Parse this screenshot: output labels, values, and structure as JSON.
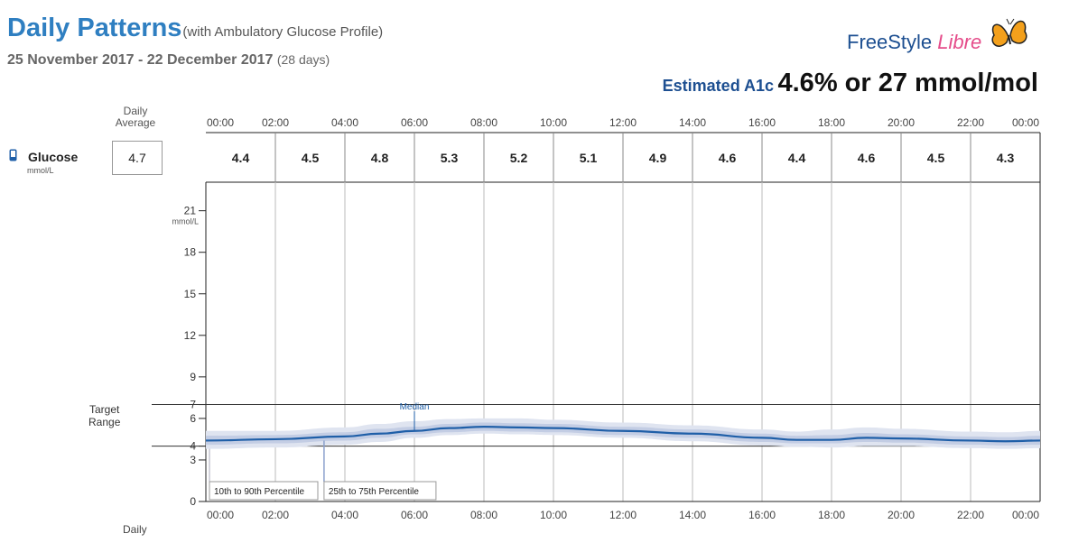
{
  "header": {
    "title": "Daily Patterns",
    "subtitle": "(with Ambulatory Glucose Profile)",
    "date_range": "25 November 2017 - 22 December 2017",
    "days": "(28 days)",
    "logo_freestyle": "FreeStyle",
    "logo_libre": "Libre",
    "a1c_label": "Estimated A1c",
    "a1c_value": "4.6% or 27 mmol/mol"
  },
  "summary": {
    "daily_average_label": "Daily\nAverage",
    "glucose_label": "Glucose",
    "glucose_unit": "mmol/L",
    "daily_average_value": "4.7",
    "target_range_label": "Target\nRange",
    "bottom_label": "Daily"
  },
  "colors": {
    "median": "#1f5fa8",
    "band_10_90": "#dfe4f0",
    "band_25_75": "#c3cde4",
    "grid": "#bbbbbb"
  },
  "chart_data": {
    "type": "area",
    "time_ticks": [
      "00:00",
      "02:00",
      "04:00",
      "06:00",
      "08:00",
      "10:00",
      "12:00",
      "14:00",
      "16:00",
      "18:00",
      "20:00",
      "22:00",
      "00:00"
    ],
    "hourly_block_averages": [
      "4.4",
      "4.5",
      "4.8",
      "5.3",
      "5.2",
      "5.1",
      "4.9",
      "4.6",
      "4.4",
      "4.6",
      "4.5",
      "4.3"
    ],
    "y_ticks": [
      0,
      3,
      4,
      6,
      7,
      9,
      12,
      15,
      18,
      21
    ],
    "ylabel": "mmol/L",
    "ylim": [
      0,
      22.4
    ],
    "xlim_hours": [
      0,
      24
    ],
    "target_range": [
      4,
      7
    ],
    "hours": [
      0,
      2,
      4,
      5,
      6,
      7,
      8,
      9,
      10,
      12,
      14,
      16,
      17,
      18,
      19,
      20,
      22,
      23,
      24
    ],
    "series": [
      {
        "name": "Median",
        "values": [
          4.4,
          4.5,
          4.7,
          4.9,
          5.1,
          5.3,
          5.4,
          5.35,
          5.3,
          5.1,
          4.9,
          4.6,
          4.45,
          4.45,
          4.6,
          4.55,
          4.4,
          4.35,
          4.4
        ]
      },
      {
        "name": "25th to 75th Percentile",
        "lower": [
          4.1,
          4.2,
          4.4,
          4.6,
          4.85,
          5.0,
          5.1,
          5.05,
          5.0,
          4.8,
          4.6,
          4.3,
          4.2,
          4.2,
          4.3,
          4.25,
          4.1,
          4.05,
          4.1
        ],
        "upper": [
          4.75,
          4.8,
          5.0,
          5.25,
          5.4,
          5.6,
          5.7,
          5.65,
          5.6,
          5.4,
          5.2,
          4.9,
          4.75,
          4.8,
          4.95,
          4.85,
          4.7,
          4.65,
          4.75
        ]
      },
      {
        "name": "10th to 90th Percentile",
        "lower": [
          3.8,
          3.9,
          4.1,
          4.3,
          4.6,
          4.8,
          4.9,
          4.85,
          4.8,
          4.6,
          4.35,
          4.05,
          3.95,
          3.9,
          4.0,
          4.0,
          3.85,
          3.8,
          3.85
        ],
        "upper": [
          5.1,
          5.1,
          5.35,
          5.6,
          5.8,
          5.95,
          6.0,
          6.0,
          5.9,
          5.7,
          5.5,
          5.2,
          5.05,
          5.2,
          5.35,
          5.25,
          5.05,
          5.0,
          5.1
        ]
      }
    ],
    "annotations": {
      "median": "Median",
      "p10_90": "10th to 90th Percentile",
      "p25_75": "25th to 75th Percentile"
    }
  }
}
